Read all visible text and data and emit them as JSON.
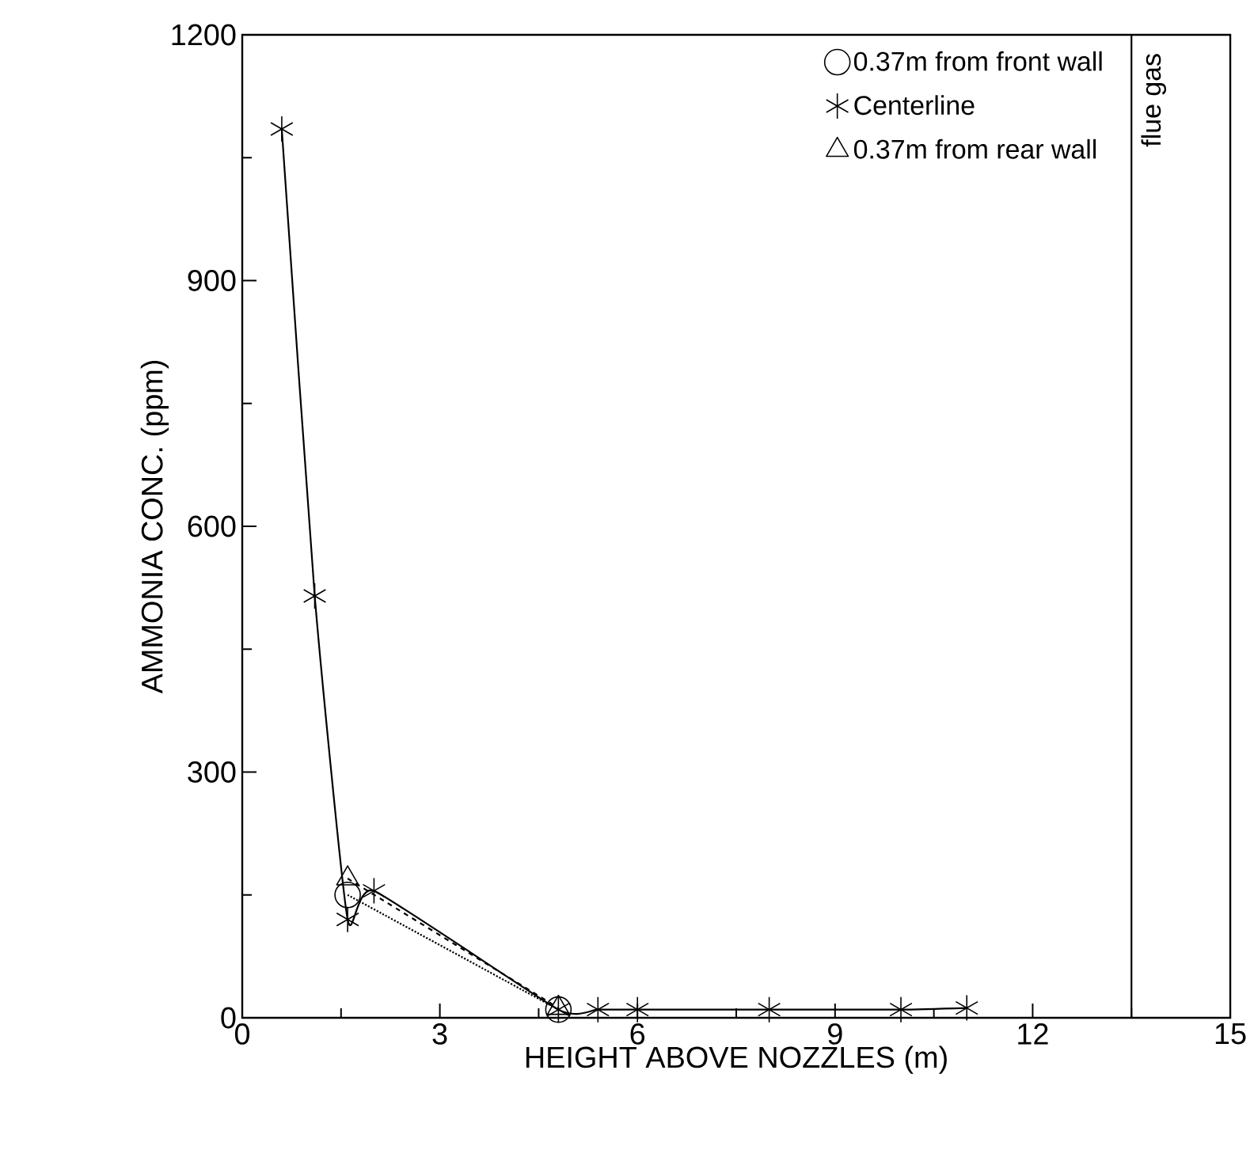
{
  "chart_data": {
    "type": "line",
    "xlabel": "HEIGHT ABOVE NOZZLES (m)",
    "ylabel": "AMMONIA CONC. (ppm)",
    "xlim": [
      0,
      15
    ],
    "xticks": [
      0,
      3,
      6,
      9,
      12,
      15
    ],
    "ylim": [
      0,
      1200
    ],
    "yticks": [
      0,
      300,
      600,
      900,
      1200
    ],
    "legend": "top right",
    "grid": false,
    "series": [
      {
        "name": "0.37m from front wall",
        "color": "#000000",
        "marker": "circle",
        "line_style": "dotted",
        "x": [
          1.6,
          4.8
        ],
        "values": [
          150,
          10
        ]
      },
      {
        "name": "Centerline",
        "color": "#000000",
        "marker": "cross",
        "line_style": "solid",
        "x": [
          0.6,
          1.1,
          1.6,
          2.0,
          4.8,
          5.4,
          6.0,
          8.0,
          10.0,
          11.0
        ],
        "values": [
          1085,
          515,
          120,
          155,
          10,
          10,
          10,
          10,
          10,
          12
        ]
      },
      {
        "name": "0.37m from rear wall",
        "color": "#000000",
        "marker": "triangle",
        "line_style": "dashed",
        "x": [
          1.6,
          4.8
        ],
        "values": [
          170,
          12
        ]
      }
    ],
    "ref_lines": [
      {
        "axis": "x",
        "value": 13.5,
        "label": "flue gas"
      }
    ]
  }
}
